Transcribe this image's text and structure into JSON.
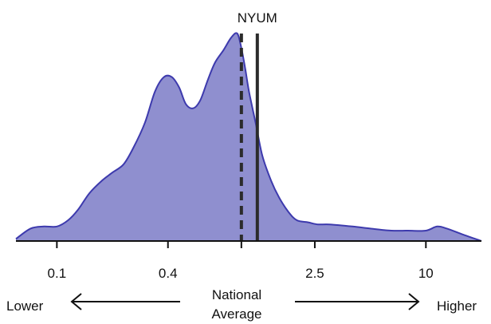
{
  "chart_data": {
    "type": "area",
    "title": "",
    "xlabel": "",
    "ylabel": "",
    "x_scale": "log",
    "xlim": [
      0.06,
      20
    ],
    "ylim": [
      0,
      1
    ],
    "grid": false,
    "legend": "none",
    "x_ticks": [
      {
        "value": 0.1,
        "label": "0.1"
      },
      {
        "value": 0.4,
        "label": "0.4"
      },
      {
        "value": 1.0,
        "label": ""
      },
      {
        "value": 2.5,
        "label": "2.5"
      },
      {
        "value": 10,
        "label": "10"
      }
    ],
    "series": [
      {
        "x": [
          0.06,
          0.072,
          0.085,
          0.1,
          0.115,
          0.13,
          0.15,
          0.175,
          0.2,
          0.23,
          0.26,
          0.3,
          0.34,
          0.38,
          0.42,
          0.46,
          0.5,
          0.55,
          0.6,
          0.66,
          0.72,
          0.8,
          0.88,
          0.95,
          1.0,
          1.05,
          1.1,
          1.2,
          1.3,
          1.45,
          1.6,
          1.8,
          2.0,
          2.3,
          2.6,
          3.0,
          4.0,
          5.0,
          6.5,
          8.0,
          10.0,
          11.5,
          13.0,
          16.0,
          20.0
        ],
        "y": [
          0.01,
          0.06,
          0.07,
          0.07,
          0.1,
          0.15,
          0.23,
          0.29,
          0.33,
          0.37,
          0.45,
          0.57,
          0.72,
          0.79,
          0.79,
          0.74,
          0.66,
          0.64,
          0.68,
          0.78,
          0.86,
          0.92,
          0.98,
          1.0,
          0.93,
          0.83,
          0.72,
          0.56,
          0.41,
          0.29,
          0.21,
          0.14,
          0.1,
          0.09,
          0.08,
          0.08,
          0.07,
          0.06,
          0.05,
          0.05,
          0.05,
          0.07,
          0.06,
          0.03,
          0.0
        ],
        "color": "#3d3aad",
        "fill": "#8f8fcf"
      }
    ],
    "reference_lines": [
      {
        "x": 1.0,
        "style": "dashed",
        "label": ""
      },
      {
        "x": 1.22,
        "style": "solid",
        "label": "NYUM"
      }
    ],
    "annotations": {
      "left_label": "Lower",
      "center_label_line1": "National",
      "center_label_line2": "Average",
      "right_label": "Higher"
    }
  }
}
